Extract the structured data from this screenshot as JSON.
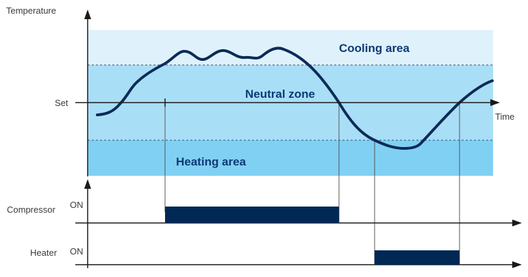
{
  "labels": {
    "temperature": "Temperature",
    "set": "Set",
    "time": "Time",
    "cooling_area": "Cooling area",
    "neutral_zone": "Neutral zone",
    "heating_area": "Heating area",
    "compressor": "Compressor",
    "heater": "Heater",
    "on": "ON"
  },
  "colors": {
    "cooling_band": "#dff1fb",
    "neutral_band": "#a9def7",
    "heating_band": "#80d0f4",
    "curve": "#0d2b57",
    "bar": "#002855",
    "axis": "#1a1a1a",
    "area_text": "#0d3a73",
    "label_text": "#3a3a3a"
  },
  "icons": {
    "axis_arrow": "arrow-head-icon"
  }
}
